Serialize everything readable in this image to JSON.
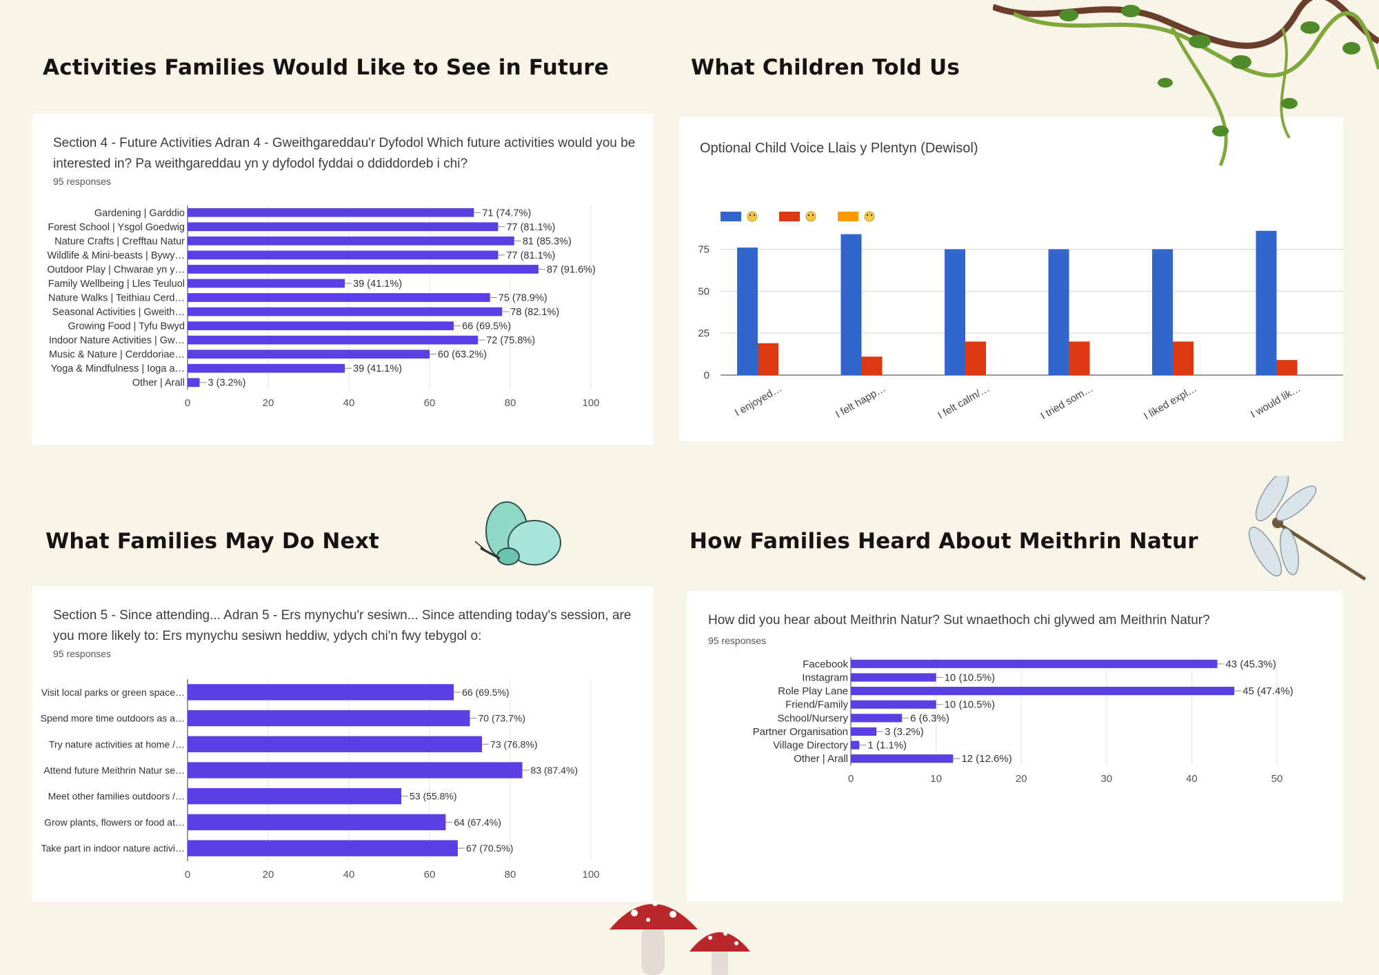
{
  "headings": {
    "future": "Activities Families Would Like to See in Future",
    "children": "What Children Told Us",
    "next": "What Families May Do Next",
    "heard": "How Families Heard About Meithrin Natur"
  },
  "cards": {
    "future": {
      "title": "Section 4 - Future Activities  Adran 4 - Gweithgareddau'r Dyfodol  Which future activities would you be interested in?  Pa weithgareddau yn y dyfodol fyddai o ddiddordeb i chi?",
      "responses": "95 responses"
    },
    "children": {
      "title": "Optional Child Voice  Llais y Plentyn (Dewisol)"
    },
    "next": {
      "title": "Section 5 - Since attending...  Adran 5 - Ers mynychu'r sesiwn...   Since attending today's session, are you more likely to:  Ers mynychu sesiwn heddiw, ydych chi'n fwy tebygol o:",
      "responses": "95 responses"
    },
    "heard": {
      "title": "How did you hear about Meithrin Natur? Sut wnaethoch chi glywed am Meithrin Natur?",
      "responses": "95 responses"
    }
  },
  "chart_data": [
    {
      "type": "bar",
      "orientation": "horizontal",
      "categories": [
        "Gardening | Garddio",
        "Forest School | Ysgol Goedwig",
        "Nature Crafts | Crefftau Natur",
        "Wildlife & Mini-beasts | Bywy…",
        "Outdoor Play | Chwarae yn y…",
        "Family Wellbeing | Lles Teuluol",
        "Nature Walks | Teithiau Cerd…",
        "Seasonal Activities | Gweith…",
        "Growing Food | Tyfu Bwyd",
        "Indoor Nature Activities | Gw…",
        "Music & Nature | Cerddoriae…",
        "Yoga & Mindfulness | Ioga a…",
        "Other | Arall"
      ],
      "values": [
        71,
        77,
        81,
        77,
        87,
        39,
        75,
        78,
        66,
        72,
        60,
        39,
        3
      ],
      "labels": [
        "71 (74.7%)",
        "77 (81.1%)",
        "81 (85.3%)",
        "77 (81.1%)",
        "87 (91.6%)",
        "39 (41.1%)",
        "75 (78.9%)",
        "78 (82.1%)",
        "66 (69.5%)",
        "72 (75.8%)",
        "60 (63.2%)",
        "39 (41.1%)",
        "3 (3.2%)"
      ],
      "xlim": [
        0,
        100
      ],
      "xticks": [
        0,
        20,
        40,
        60,
        80,
        100
      ],
      "grid": true,
      "color": "#5b3fe4"
    },
    {
      "type": "bar",
      "orientation": "vertical",
      "categories": [
        "I enjoyed…",
        "I felt happ…",
        "I felt calm/…",
        "I tried som…",
        "I liked expl…",
        "I would lik…"
      ],
      "series": [
        {
          "icon": "grinning-face-icon",
          "color": "#3366cc",
          "values": [
            76,
            84,
            75,
            75,
            75,
            86
          ]
        },
        {
          "icon": "neutral-face-icon",
          "color": "#dc3912",
          "values": [
            19,
            11,
            20,
            20,
            20,
            9
          ]
        },
        {
          "icon": "frowning-face-icon",
          "color": "#ff9900",
          "values": [
            0,
            0,
            0,
            0,
            0,
            0
          ]
        }
      ],
      "ylim": [
        0,
        90
      ],
      "yticks": [
        0,
        25,
        50,
        75
      ],
      "grid": true,
      "legend": "top-left"
    },
    {
      "type": "bar",
      "orientation": "horizontal",
      "categories": [
        "Visit local parks or green space…",
        "Spend more time outdoors as a…",
        "Try nature activities at home /…",
        "Attend future Meithrin Natur se…",
        "Meet other families outdoors /…",
        "Grow plants, flowers or food at…",
        "Take part in indoor nature activi…"
      ],
      "values": [
        66,
        70,
        73,
        83,
        53,
        64,
        67
      ],
      "labels": [
        "66 (69.5%)",
        "70 (73.7%)",
        "73 (76.8%)",
        "83 (87.4%)",
        "53 (55.8%)",
        "64 (67.4%)",
        "67 (70.5%)"
      ],
      "xlim": [
        0,
        100
      ],
      "xticks": [
        0,
        20,
        40,
        60,
        80,
        100
      ],
      "grid": true,
      "color": "#5b3fe4"
    },
    {
      "type": "bar",
      "orientation": "horizontal",
      "categories": [
        "Facebook",
        "Instagram",
        "Role Play Lane",
        "Friend/Family",
        "School/Nursery",
        "Partner Organisation",
        "Village Directory",
        "Other | Arall"
      ],
      "values": [
        43,
        10,
        45,
        10,
        6,
        3,
        1,
        12
      ],
      "labels": [
        "43 (45.3%)",
        "10 (10.5%)",
        "45 (47.4%)",
        "10 (10.5%)",
        "6 (6.3%)",
        "3 (3.2%)",
        "1 (1.1%)",
        "12 (12.6%)"
      ],
      "xlim": [
        0,
        50
      ],
      "xticks": [
        0,
        10,
        20,
        30,
        40,
        50
      ],
      "grid": true,
      "color": "#5b3fe4"
    }
  ],
  "decorations": [
    "vine-decoration",
    "butterfly-decoration",
    "dragonfly-decoration",
    "mushroom-decoration"
  ]
}
